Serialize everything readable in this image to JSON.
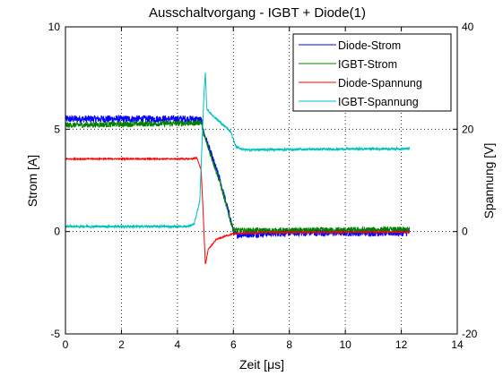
{
  "chart_data": {
    "type": "line",
    "title": "Ausschaltvorgang - IGBT + Diode(1)",
    "xlabel": "Zeit [μs]",
    "ylabel_left": "Strom [A]",
    "ylabel_right": "Spannung [V]",
    "xlim": [
      0,
      14
    ],
    "ylim_left": [
      -5,
      10
    ],
    "ylim_right": [
      -20,
      40
    ],
    "x_ticks": [
      "0",
      "2",
      "4",
      "6",
      "8",
      "10",
      "12",
      "14"
    ],
    "y_ticks_left": [
      "-5",
      "0",
      "5",
      "10"
    ],
    "y_ticks_right": [
      "-20",
      "0",
      "20",
      "40"
    ],
    "grid": true,
    "grid_style": "dotted",
    "legend_position": "top-right",
    "series": [
      {
        "name": "Diode-Strom",
        "axis": "left",
        "color": "#0000ff",
        "noise": 0.18,
        "points": [
          [
            0,
            5.5
          ],
          [
            4.6,
            5.5
          ],
          [
            4.85,
            5.45
          ],
          [
            4.95,
            4.8
          ],
          [
            5.1,
            4.2
          ],
          [
            5.3,
            3.4
          ],
          [
            5.5,
            2.6
          ],
          [
            5.7,
            1.6
          ],
          [
            5.9,
            0.6
          ],
          [
            6.0,
            0.0
          ],
          [
            6.1,
            -0.15
          ],
          [
            7,
            -0.1
          ],
          [
            8,
            -0.05
          ],
          [
            12.3,
            -0.05
          ]
        ]
      },
      {
        "name": "IGBT-Strom",
        "axis": "left",
        "color": "#008000",
        "noise": 0.14,
        "points": [
          [
            0,
            5.2
          ],
          [
            4.6,
            5.3
          ],
          [
            4.85,
            5.35
          ],
          [
            4.95,
            4.7
          ],
          [
            5.1,
            4.1
          ],
          [
            5.3,
            3.3
          ],
          [
            5.5,
            2.5
          ],
          [
            5.7,
            1.5
          ],
          [
            5.9,
            0.5
          ],
          [
            6.0,
            0.1
          ],
          [
            6.2,
            0.05
          ],
          [
            8,
            0.05
          ],
          [
            12.3,
            0.1
          ]
        ]
      },
      {
        "name": "Diode-Spannung",
        "axis": "right",
        "color": "#ff0000",
        "noise": 0.12,
        "points": [
          [
            0,
            14.2
          ],
          [
            4.5,
            14.2
          ],
          [
            4.7,
            14.4
          ],
          [
            4.85,
            12
          ],
          [
            4.95,
            0
          ],
          [
            5.0,
            -6.5
          ],
          [
            5.1,
            -3.5
          ],
          [
            5.4,
            -1.5
          ],
          [
            6.0,
            -0.4
          ],
          [
            7.0,
            -0.2
          ],
          [
            12.3,
            -0.1
          ]
        ]
      },
      {
        "name": "IGBT-Spannung",
        "axis": "right",
        "color": "#00bfbf",
        "noise": 0.22,
        "points": [
          [
            0,
            1.0
          ],
          [
            4.4,
            1.0
          ],
          [
            4.6,
            1.5
          ],
          [
            4.8,
            6
          ],
          [
            4.95,
            27
          ],
          [
            5.0,
            31
          ],
          [
            5.05,
            24
          ],
          [
            5.2,
            23
          ],
          [
            5.6,
            21
          ],
          [
            5.9,
            19.5
          ],
          [
            6.1,
            16.5
          ],
          [
            6.4,
            16
          ],
          [
            12.3,
            16.2
          ]
        ]
      }
    ]
  }
}
